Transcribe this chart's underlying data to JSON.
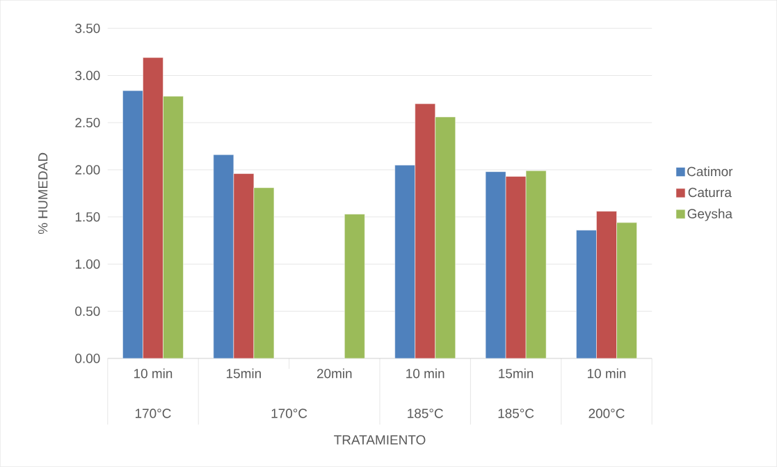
{
  "chart_data": {
    "type": "bar",
    "xlabel": "TRATAMIENTO",
    "ylabel": "% HUMEDAD",
    "categories": [
      "10 min",
      "15min",
      "20min",
      "10 min",
      "15min",
      "10 min"
    ],
    "series": [
      {
        "name": "Catimor",
        "color": "#4f81bd",
        "values": [
          2.84,
          2.16,
          null,
          2.05,
          1.98,
          1.36
        ]
      },
      {
        "name": "Caturra",
        "color": "#c0504d",
        "values": [
          3.19,
          1.96,
          null,
          2.7,
          1.93,
          1.56
        ]
      },
      {
        "name": "Geysha",
        "color": "#9bbb59",
        "values": [
          2.78,
          1.81,
          1.53,
          2.56,
          1.99,
          1.44
        ]
      }
    ],
    "annotations": [
      "170°C",
      "170°C",
      "185°C",
      "185°C",
      "200°C"
    ],
    "ylim": [
      0,
      3.5
    ],
    "yticks": [
      {
        "value": 0,
        "label": "0.00"
      },
      {
        "value": 0.5,
        "label": "0.50"
      },
      {
        "value": 1,
        "label": "1.00"
      },
      {
        "value": 1.5,
        "label": "1.50"
      },
      {
        "value": 2,
        "label": "2.00"
      },
      {
        "value": 2.5,
        "label": "2.50"
      },
      {
        "value": 3,
        "label": "3.00"
      },
      {
        "value": 3.5,
        "label": "3.50"
      }
    ],
    "grid": "y",
    "legend": "right"
  }
}
